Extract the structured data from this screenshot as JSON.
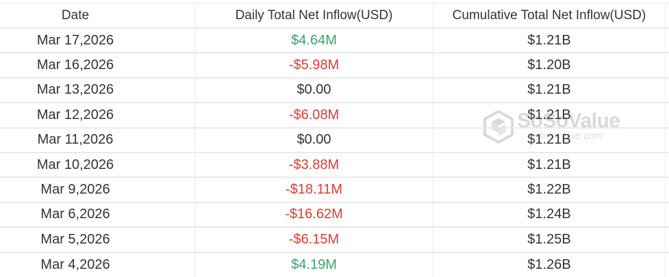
{
  "table": {
    "columns": [
      {
        "label": "Date"
      },
      {
        "label": "Daily Total Net Inflow(USD)"
      },
      {
        "label": "Cumulative Total Net Inflow(USD)"
      }
    ],
    "rows": [
      {
        "date": "Mar 17,2026",
        "daily": "$4.64M",
        "daily_trend": "positive",
        "cumulative": "$1.21B"
      },
      {
        "date": "Mar 16,2026",
        "daily": "-$5.98M",
        "daily_trend": "negative",
        "cumulative": "$1.20B"
      },
      {
        "date": "Mar 13,2026",
        "daily": "$0.00",
        "daily_trend": "neutral",
        "cumulative": "$1.21B"
      },
      {
        "date": "Mar 12,2026",
        "daily": "-$6.08M",
        "daily_trend": "negative",
        "cumulative": "$1.21B"
      },
      {
        "date": "Mar 11,2026",
        "daily": "$0.00",
        "daily_trend": "neutral",
        "cumulative": "$1.21B"
      },
      {
        "date": "Mar 10,2026",
        "daily": "-$3.88M",
        "daily_trend": "negative",
        "cumulative": "$1.21B"
      },
      {
        "date": "Mar 9,2026",
        "daily": "-$18.11M",
        "daily_trend": "negative",
        "cumulative": "$1.22B"
      },
      {
        "date": "Mar 6,2026",
        "daily": "-$16.62M",
        "daily_trend": "negative",
        "cumulative": "$1.24B"
      },
      {
        "date": "Mar 5,2026",
        "daily": "-$6.15M",
        "daily_trend": "negative",
        "cumulative": "$1.25B"
      },
      {
        "date": "Mar 4,2026",
        "daily": "$4.19M",
        "daily_trend": "positive",
        "cumulative": "$1.26B"
      }
    ]
  },
  "watermark": {
    "brand": "SoSoValue",
    "domain": "sosovalue.com",
    "logo": "cube-logo-icon"
  },
  "colors": {
    "positive": "#3ba269",
    "negative": "#e03b34",
    "text": "#333333",
    "border_h": "#e9e9e9",
    "border_v": "#ededed",
    "watermark": "#d9d9d9",
    "watermark_light": "#dedede"
  },
  "chart_data": {
    "type": "table",
    "title": "Daily and Cumulative Total Net Inflow (USD)",
    "columns": [
      "Date",
      "Daily Total Net Inflow(USD)",
      "Cumulative Total Net Inflow(USD)"
    ],
    "rows": [
      [
        "Mar 17,2026",
        "$4.64M",
        "$1.21B"
      ],
      [
        "Mar 16,2026",
        "-$5.98M",
        "$1.20B"
      ],
      [
        "Mar 13,2026",
        "$0.00",
        "$1.21B"
      ],
      [
        "Mar 12,2026",
        "-$6.08M",
        "$1.21B"
      ],
      [
        "Mar 11,2026",
        "$0.00",
        "$1.21B"
      ],
      [
        "Mar 10,2026",
        "-$3.88M",
        "$1.21B"
      ],
      [
        "Mar 9,2026",
        "-$18.11M",
        "$1.22B"
      ],
      [
        "Mar 6,2026",
        "-$16.62M",
        "$1.24B"
      ],
      [
        "Mar 5,2026",
        "-$6.15M",
        "$1.25B"
      ],
      [
        "Mar 4,2026",
        "$4.19M",
        "$1.26B"
      ]
    ],
    "daily_net_inflow_usd_millions": [
      4.64,
      -5.98,
      0.0,
      -6.08,
      0.0,
      -3.88,
      -18.11,
      -16.62,
      -6.15,
      4.19
    ],
    "cumulative_net_inflow_usd_billions": [
      1.21,
      1.2,
      1.21,
      1.21,
      1.21,
      1.21,
      1.22,
      1.24,
      1.25,
      1.26
    ]
  }
}
